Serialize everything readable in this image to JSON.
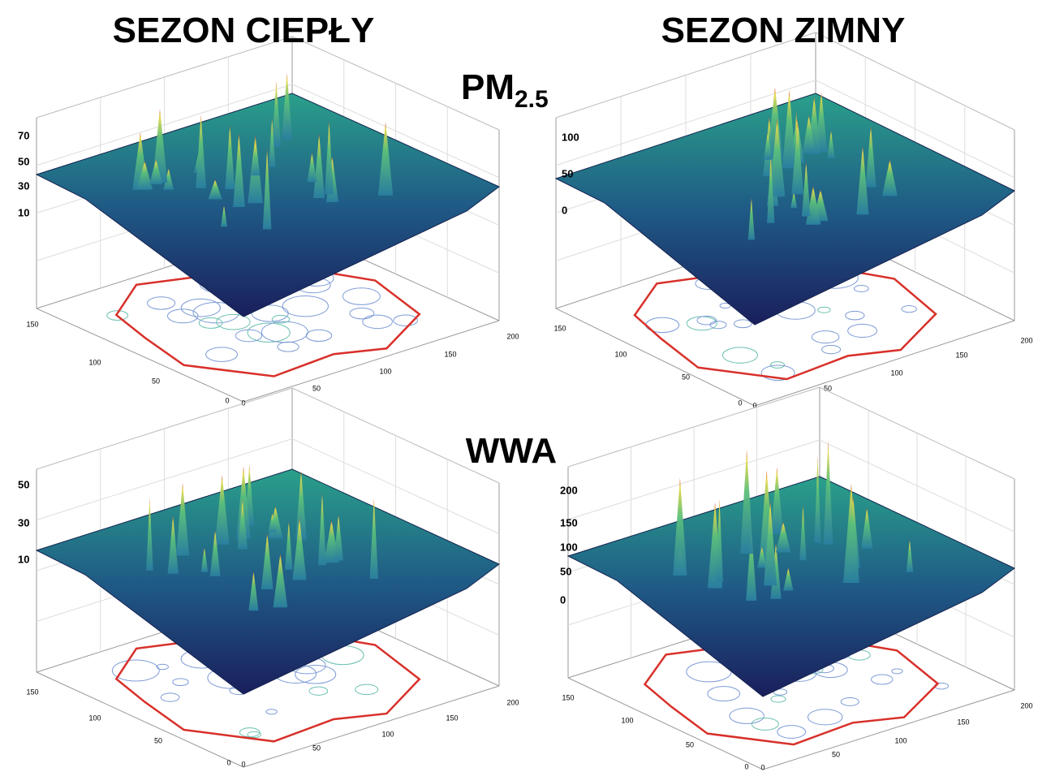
{
  "titles": {
    "warm": "SEZON CIEPŁY",
    "cold": "SEZON ZIMNY"
  },
  "rows": [
    {
      "label": "PM",
      "label_sub": "2.5"
    },
    {
      "label": "WWA"
    }
  ],
  "panels": [
    {
      "z_ticks": [
        "70",
        "50",
        "30",
        "10"
      ],
      "y_ticks": [
        "150",
        "100",
        "50",
        "0"
      ],
      "x_ticks": [
        "0",
        "50",
        "100",
        "150",
        "200"
      ]
    },
    {
      "z_ticks": [
        "100",
        "50",
        "0"
      ],
      "y_ticks": [
        "150",
        "100",
        "50",
        "0"
      ],
      "x_ticks": [
        "0",
        "50",
        "100",
        "150",
        "200"
      ]
    },
    {
      "z_ticks": [
        "50",
        "30",
        "10"
      ],
      "y_ticks": [
        "150",
        "100",
        "50",
        "0"
      ],
      "x_ticks": [
        "0",
        "50",
        "100",
        "150",
        "200"
      ]
    },
    {
      "z_ticks": [
        "200",
        "150",
        "100",
        "50",
        "0"
      ],
      "y_ticks": [
        "150",
        "100",
        "50",
        "0"
      ],
      "x_ticks": [
        "0",
        "50",
        "100",
        "150",
        "200"
      ]
    }
  ]
}
